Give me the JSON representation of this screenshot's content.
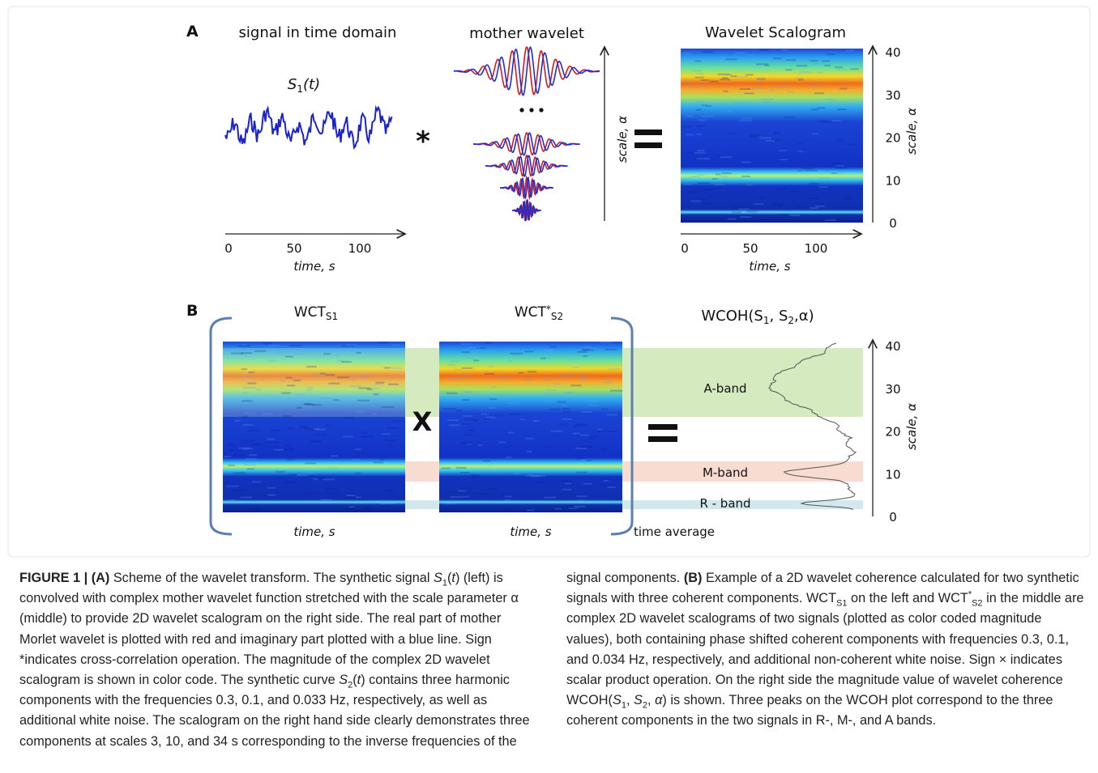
{
  "figure": {
    "panel_a": {
      "label": "A",
      "signal_title": "signal in time domain",
      "signal_name": [
        {
          "text": "S",
          "style": "italic"
        },
        {
          "text": "1",
          "style": "sub"
        },
        {
          "text": "(t)",
          "style": "italic"
        }
      ],
      "operator": "*",
      "wavelet_title": "mother wavelet",
      "scale_label": "scale, α",
      "scalogram_title": "Wavelet Scalogram",
      "yticks": [
        40,
        30,
        20,
        10,
        0
      ],
      "y_label": "scale, α",
      "xticks": [
        0,
        50,
        100
      ],
      "x_label": "time, s"
    },
    "panel_b": {
      "label": "B",
      "left_title": [
        {
          "text": "WCT"
        },
        {
          "text": "S1",
          "style": "sub"
        }
      ],
      "middle_title": [
        {
          "text": "WCT"
        },
        {
          "text": "*",
          "style": "sup"
        },
        {
          "text": "S2",
          "style": "sub"
        }
      ],
      "operator": "X",
      "right_title": [
        {
          "text": "WCOH(S"
        },
        {
          "text": "1",
          "style": "sub"
        },
        {
          "text": ", S"
        },
        {
          "text": "2",
          "style": "sub"
        },
        {
          "text": ",α)"
        }
      ],
      "bands": [
        "A-band",
        "M-band",
        "R - band"
      ],
      "x_label": "time, s",
      "average_label": "time average",
      "yticks": [
        40,
        30,
        20,
        10,
        0
      ],
      "y_label": "scale, α"
    }
  },
  "caption": [
    {
      "text": "FIGURE 1 | (A)",
      "style": "bold"
    },
    {
      "text": " Scheme of the wavelet transform. The synthetic signal "
    },
    {
      "text": "S",
      "style": "italic"
    },
    {
      "text": "1",
      "style": "sub"
    },
    {
      "text": "("
    },
    {
      "text": "t",
      "style": "italic"
    },
    {
      "text": ") (left) is convolved with complex mother wavelet function stretched with the scale parameter α (middle) to provide 2D wavelet scalogram on the right side. The real part of mother Morlet wavelet is plotted with red and imaginary part plotted with a blue line. Sign *indicates cross-correlation operation. The magnitude of the complex 2D wavelet scalogram is shown in color code. The synthetic curve "
    },
    {
      "text": "S",
      "style": "italic"
    },
    {
      "text": "2",
      "style": "sub"
    },
    {
      "text": "("
    },
    {
      "text": "t",
      "style": "italic"
    },
    {
      "text": ") contains three harmonic components with the frequencies 0.3, 0.1, and 0.033 Hz, respectively, as well as additional white noise. The scalogram on the right hand side clearly demonstrates three components at scales 3, 10, and 34 s corresponding to the inverse frequencies of the signal components. "
    },
    {
      "text": "(B)",
      "style": "bold"
    },
    {
      "text": " Example of a 2D wavelet coherence calculated for two synthetic signals with three coherent components. WCT"
    },
    {
      "text": "S1",
      "style": "sub"
    },
    {
      "text": " on the left and WCT"
    },
    {
      "text": "*",
      "style": "sup"
    },
    {
      "text": "S2",
      "style": "sub"
    },
    {
      "text": " in the middle are complex 2D wavelet scalograms of two signals (plotted as color coded magnitude values), both containing phase shifted coherent components with frequencies 0.3, 0.1, and 0.034 Hz, respectively, and additional non-coherent white noise. Sign × indicates scalar product operation. On the right side the magnitude value of wavelet coherence WCOH("
    },
    {
      "text": "S",
      "style": "italic"
    },
    {
      "text": "1",
      "style": "sub"
    },
    {
      "text": ", "
    },
    {
      "text": "S",
      "style": "italic"
    },
    {
      "text": "2",
      "style": "sub"
    },
    {
      "text": ", "
    },
    {
      "text": "α",
      "style": "italic"
    },
    {
      "text": ") is shown. Three peaks on the WCOH plot correspond to the three coherent components in the two signals in R-, M-, and A bands."
    }
  ]
}
